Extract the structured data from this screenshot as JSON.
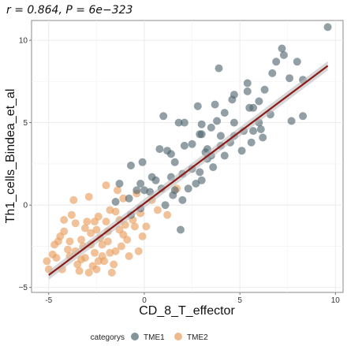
{
  "chart_data": {
    "type": "scatter",
    "title": "r = 0.864,  P = 6e−323",
    "xlabel": "CD_8_T_effector",
    "ylabel": "Th1_cells_Bindea_et_al",
    "xlim": [
      -5.9,
      10.4
    ],
    "ylim": [
      -5.3,
      11.2
    ],
    "xticks": [
      -5,
      0,
      5,
      10
    ],
    "yticks": [
      -5,
      0,
      5,
      10
    ],
    "grid": true,
    "legend": {
      "title": "categorys",
      "position": "bottom",
      "entries": [
        {
          "name": "TME1",
          "color": "#4f6670"
        },
        {
          "name": "TME2",
          "color": "#e89c5a"
        }
      ]
    },
    "regression": {
      "slope": 0.87,
      "intercept": 0.1,
      "x_range": [
        -5.0,
        9.6
      ],
      "color": "#8b1a1a",
      "ribbon_color": "#bdbdbd"
    },
    "series": [
      {
        "name": "TME1",
        "color": "#4f6670",
        "points": [
          [
            9.6,
            10.8
          ],
          [
            7.2,
            9.5
          ],
          [
            7.3,
            9.1
          ],
          [
            8.0,
            8.7
          ],
          [
            6.9,
            8.7
          ],
          [
            3.9,
            8.3
          ],
          [
            6.7,
            8.0
          ],
          [
            7.6,
            7.7
          ],
          [
            8.3,
            7.6
          ],
          [
            5.4,
            7.4
          ],
          [
            6.3,
            7.0
          ],
          [
            4.6,
            6.4
          ],
          [
            6.0,
            6.3
          ],
          [
            3.7,
            6.1
          ],
          [
            5.7,
            5.9
          ],
          [
            5.5,
            5.9
          ],
          [
            1.0,
            5.4
          ],
          [
            8.3,
            5.4
          ],
          [
            2.1,
            5.0
          ],
          [
            7.7,
            5.1
          ],
          [
            4.2,
            5.6
          ],
          [
            6.1,
            4.6
          ],
          [
            3.5,
            4.7
          ],
          [
            5.7,
            4.5
          ],
          [
            2.9,
            4.3
          ],
          [
            4.7,
            4.2
          ],
          [
            4.0,
            3.6
          ],
          [
            3.3,
            3.4
          ],
          [
            1.2,
            3.3
          ],
          [
            3.3,
            2.8
          ],
          [
            2.5,
            2.2
          ],
          [
            2.0,
            1.9
          ],
          [
            1.4,
            1.7
          ],
          [
            0.6,
            1.5
          ],
          [
            -0.2,
            1.3
          ],
          [
            3.0,
            1.5
          ],
          [
            -1.3,
            1.3
          ],
          [
            -0.4,
            0.9
          ],
          [
            0.3,
            0.8
          ],
          [
            -0.8,
            0.4
          ],
          [
            1.5,
            0.6
          ],
          [
            2.0,
            0.3
          ],
          [
            -1.5,
            0.2
          ],
          [
            -0.2,
            -0.2
          ],
          [
            2.7,
            1.3
          ],
          [
            -0.7,
            -0.6
          ],
          [
            1.9,
            -1.5
          ],
          [
            1.1,
            0.0
          ],
          [
            4.2,
            3.0
          ],
          [
            3.0,
            4.3
          ],
          [
            5.2,
            4.5
          ],
          [
            4.7,
            5.0
          ],
          [
            6.2,
            4.1
          ],
          [
            5.1,
            3.3
          ],
          [
            2.1,
            3.6
          ],
          [
            3.5,
            3.0
          ],
          [
            4.5,
            3.8
          ],
          [
            1.6,
            2.6
          ],
          [
            2.9,
            2.0
          ],
          [
            3.6,
            2.3
          ],
          [
            0.4,
            1.7
          ],
          [
            2.3,
            1.0
          ],
          [
            -0.7,
            2.4
          ],
          [
            2.8,
            6.0
          ],
          [
            1.8,
            5.0
          ],
          [
            3.8,
            5.1
          ],
          [
            6.6,
            5.5
          ],
          [
            5.4,
            6.9
          ],
          [
            4.0,
            4.2
          ],
          [
            0.8,
            3.4
          ],
          [
            1.4,
            3.1
          ],
          [
            -0.1,
            2.6
          ],
          [
            4.7,
            6.7
          ],
          [
            2.5,
            3.7
          ],
          [
            3.2,
            3.2
          ],
          [
            6.0,
            5.0
          ],
          [
            3.0,
            4.9
          ],
          [
            5.6,
            3.8
          ],
          [
            0.0,
            0.9
          ],
          [
            0.9,
            1.0
          ],
          [
            1.6,
            0.9
          ]
        ]
      },
      {
        "name": "TME2",
        "color": "#e89c5a",
        "points": [
          [
            -5.1,
            -3.4
          ],
          [
            -4.8,
            -3.0
          ],
          [
            -4.3,
            -3.9
          ],
          [
            -4.5,
            -2.2
          ],
          [
            -4.0,
            -2.7
          ],
          [
            -3.5,
            -3.6
          ],
          [
            -4.2,
            -1.6
          ],
          [
            -3.1,
            -3.2
          ],
          [
            -3.8,
            -0.6
          ],
          [
            -2.6,
            -2.9
          ],
          [
            -3.3,
            -2.1
          ],
          [
            -2.9,
            -4.1
          ],
          [
            -2.5,
            -1.5
          ],
          [
            -2.1,
            -3.4
          ],
          [
            -1.9,
            -2.2
          ],
          [
            -2.4,
            -0.7
          ],
          [
            -1.5,
            -2.8
          ],
          [
            -1.3,
            -1.5
          ],
          [
            -1.8,
            -0.3
          ],
          [
            -0.9,
            -2.1
          ],
          [
            -0.6,
            -0.9
          ],
          [
            -1.1,
            0.4
          ],
          [
            -0.3,
            -2.8
          ],
          [
            0.1,
            -1.3
          ],
          [
            -2.0,
            1.2
          ],
          [
            -3.6,
            -1.1
          ],
          [
            -2.8,
            -1.7
          ],
          [
            -4.7,
            -2.4
          ],
          [
            -3.9,
            -3.1
          ],
          [
            -2.2,
            -2.4
          ],
          [
            -1.6,
            -3.6
          ],
          [
            0.7,
            -0.3
          ],
          [
            -0.4,
            0.7
          ],
          [
            -2.7,
            -3.7
          ],
          [
            -3.2,
            -2.5
          ],
          [
            -1.3,
            -0.9
          ],
          [
            -1.7,
            -4.1
          ],
          [
            -5.0,
            -3.9
          ],
          [
            -4.4,
            -1.9
          ],
          [
            -3.0,
            -1.0
          ],
          [
            -2.3,
            -2.0
          ],
          [
            -1.0,
            -1.2
          ],
          [
            -0.8,
            -3.1
          ],
          [
            -2.5,
            -3.9
          ],
          [
            -3.4,
            -4.0
          ],
          [
            1.7,
            1.0
          ],
          [
            -0.1,
            -1.9
          ],
          [
            -1.4,
            0.9
          ],
          [
            -2.9,
            0.5
          ],
          [
            -3.7,
            0.3
          ],
          [
            -4.2,
            -0.9
          ],
          [
            -2.0,
            -1.0
          ],
          [
            -1.2,
            -2.5
          ],
          [
            -3.3,
            -3.3
          ],
          [
            -2.6,
            -1.0
          ],
          [
            -1.9,
            -1.6
          ],
          [
            -3.9,
            -2.2
          ],
          [
            -2.2,
            -3.1
          ],
          [
            -1.5,
            -0.4
          ],
          [
            -0.5,
            -1.3
          ],
          [
            -2.8,
            -2.4
          ],
          [
            -3.6,
            -2.8
          ],
          [
            -4.6,
            -3.2
          ],
          [
            -1.8,
            -2.9
          ],
          [
            -1.1,
            -1.8
          ],
          [
            -0.2,
            -0.5
          ],
          [
            0.4,
            0.3
          ],
          [
            1.2,
            -0.6
          ],
          [
            -2.4,
            -3.4
          ],
          [
            -3.1,
            -1.4
          ]
        ]
      }
    ]
  }
}
